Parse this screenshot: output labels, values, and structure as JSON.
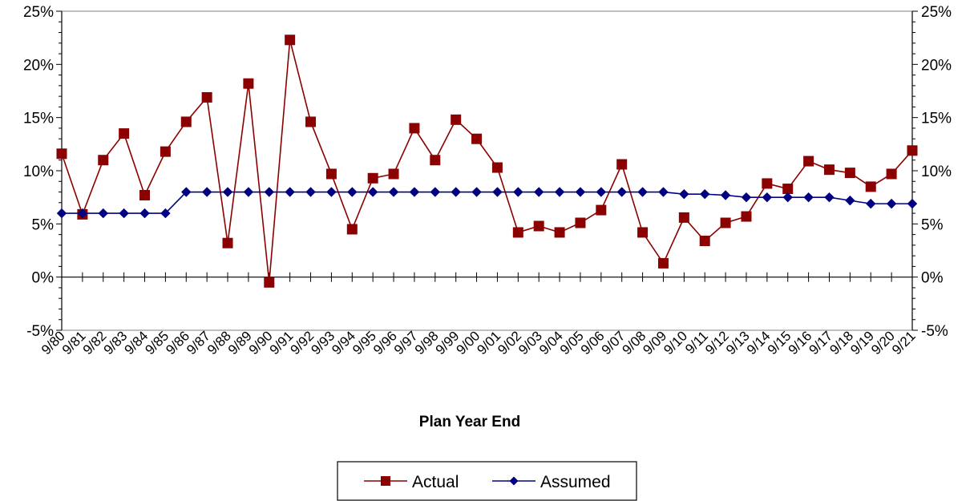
{
  "chart_data": {
    "type": "line",
    "xlabel": "Plan Year End",
    "ylabel": "",
    "ylim": [
      -5,
      25
    ],
    "yticks": [
      "-5%",
      "0%",
      "5%",
      "10%",
      "15%",
      "20%",
      "25%"
    ],
    "y_ticks_both_sides": true,
    "grid": false,
    "legend_position": "bottom-center",
    "categories": [
      "9/80",
      "9/81",
      "9/82",
      "9/83",
      "9/84",
      "9/85",
      "9/86",
      "9/87",
      "9/88",
      "9/89",
      "9/90",
      "9/91",
      "9/92",
      "9/93",
      "9/94",
      "9/95",
      "9/96",
      "9/97",
      "9/98",
      "9/99",
      "9/00",
      "9/01",
      "9/02",
      "9/03",
      "9/04",
      "9/05",
      "9/06",
      "9/07",
      "9/08",
      "9/09",
      "9/10",
      "9/11",
      "9/12",
      "9/13",
      "9/14",
      "9/15",
      "9/16",
      "9/17",
      "9/18",
      "9/19",
      "9/20",
      "9/21"
    ],
    "series": [
      {
        "name": "Actual",
        "color": "#8B0000",
        "marker": "square",
        "values": [
          11.6,
          5.9,
          11.0,
          13.5,
          7.7,
          11.8,
          14.6,
          16.9,
          3.2,
          18.2,
          -0.5,
          22.3,
          14.6,
          9.7,
          4.5,
          9.3,
          9.7,
          14.0,
          11.0,
          14.8,
          13.0,
          10.3,
          4.2,
          4.8,
          4.2,
          5.1,
          6.3,
          10.6,
          4.2,
          1.3,
          5.6,
          3.4,
          5.1,
          5.7,
          8.8,
          8.3,
          10.9,
          10.1,
          9.8,
          8.5,
          9.7,
          11.9
        ]
      },
      {
        "name": "Assumed",
        "color": "#000080",
        "marker": "diamond",
        "values": [
          6.0,
          6.0,
          6.0,
          6.0,
          6.0,
          6.0,
          8.0,
          8.0,
          8.0,
          8.0,
          8.0,
          8.0,
          8.0,
          8.0,
          8.0,
          8.0,
          8.0,
          8.0,
          8.0,
          8.0,
          8.0,
          8.0,
          8.0,
          8.0,
          8.0,
          8.0,
          8.0,
          8.0,
          8.0,
          8.0,
          7.8,
          7.8,
          7.7,
          7.5,
          7.5,
          7.5,
          7.5,
          7.5,
          7.2,
          6.9,
          6.9,
          6.9
        ]
      }
    ]
  }
}
